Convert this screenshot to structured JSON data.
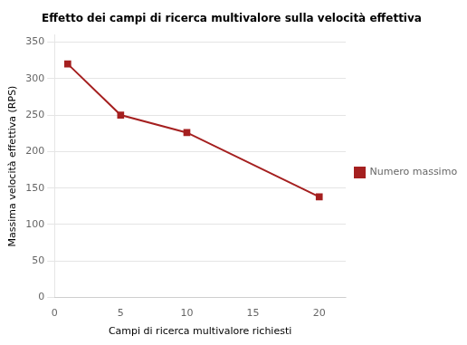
{
  "chart_data": {
    "type": "line",
    "title": "Effetto dei campi di ricerca multivalore sulla velocità effettiva",
    "xlabel": "Campi di ricerca multivalore richiesti",
    "ylabel": "Massima velocità effettiva (RPS)",
    "x": [
      1,
      5,
      10,
      20
    ],
    "series": [
      {
        "name": "Numero massimo RPS",
        "color": "#a52020",
        "marker": "square",
        "values": [
          320,
          250,
          226,
          138
        ]
      }
    ],
    "xlim": [
      0,
      22
    ],
    "ylim": [
      0,
      360
    ],
    "xticks": [
      0,
      5,
      10,
      15,
      20
    ],
    "yticks": [
      0,
      50,
      100,
      150,
      200,
      250,
      300,
      350
    ],
    "grid": "y",
    "legend": "right"
  }
}
